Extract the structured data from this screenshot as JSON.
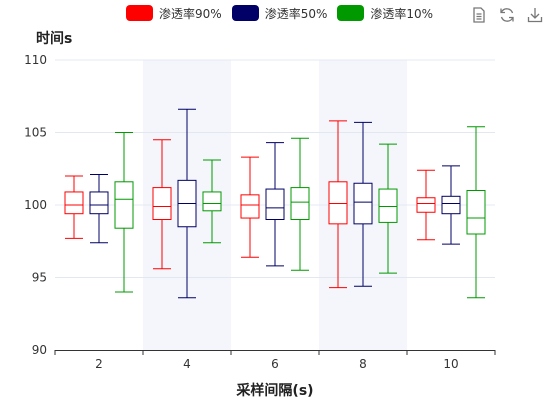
{
  "toolbox": {
    "icons": [
      "data-view-icon",
      "refresh-icon",
      "download-icon"
    ]
  },
  "chart_data": {
    "type": "boxplot",
    "ylabel": "时间s",
    "xlabel": "采样间隔(s)",
    "categories": [
      "2",
      "4",
      "6",
      "8",
      "10"
    ],
    "ylim": [
      90,
      110
    ],
    "yticks": [
      90,
      95,
      100,
      105,
      110
    ],
    "grid": true,
    "legend_position": "top-center",
    "series": [
      {
        "name": "渗透率90%",
        "color": "#ff0000",
        "boxes": [
          {
            "min": 97.7,
            "q1": 99.4,
            "median": 100.0,
            "q3": 100.9,
            "max": 102.0
          },
          {
            "min": 95.6,
            "q1": 99.0,
            "median": 99.9,
            "q3": 101.2,
            "max": 104.5
          },
          {
            "min": 96.4,
            "q1": 99.1,
            "median": 100.0,
            "q3": 100.7,
            "max": 103.3
          },
          {
            "min": 94.3,
            "q1": 98.7,
            "median": 100.1,
            "q3": 101.6,
            "max": 105.8
          },
          {
            "min": 97.6,
            "q1": 99.5,
            "median": 100.1,
            "q3": 100.5,
            "max": 102.4
          }
        ]
      },
      {
        "name": "渗透率50%",
        "color": "#000066",
        "boxes": [
          {
            "min": 97.4,
            "q1": 99.4,
            "median": 100.0,
            "q3": 100.9,
            "max": 102.1
          },
          {
            "min": 93.6,
            "q1": 98.5,
            "median": 100.1,
            "q3": 101.7,
            "max": 106.6
          },
          {
            "min": 95.8,
            "q1": 99.0,
            "median": 99.8,
            "q3": 101.1,
            "max": 104.3
          },
          {
            "min": 94.4,
            "q1": 98.7,
            "median": 100.2,
            "q3": 101.5,
            "max": 105.7
          },
          {
            "min": 97.3,
            "q1": 99.4,
            "median": 100.1,
            "q3": 100.6,
            "max": 102.7
          }
        ]
      },
      {
        "name": "渗透率10%",
        "color": "#009900",
        "boxes": [
          {
            "min": 94.0,
            "q1": 98.4,
            "median": 100.4,
            "q3": 101.6,
            "max": 105.0
          },
          {
            "min": 97.4,
            "q1": 99.6,
            "median": 100.1,
            "q3": 100.9,
            "max": 103.1
          },
          {
            "min": 95.5,
            "q1": 99.0,
            "median": 100.2,
            "q3": 101.2,
            "max": 104.6
          },
          {
            "min": 95.3,
            "q1": 98.8,
            "median": 99.9,
            "q3": 101.1,
            "max": 104.2
          },
          {
            "min": 93.6,
            "q1": 98.0,
            "median": 99.1,
            "q3": 101.0,
            "max": 105.4
          }
        ]
      }
    ]
  }
}
